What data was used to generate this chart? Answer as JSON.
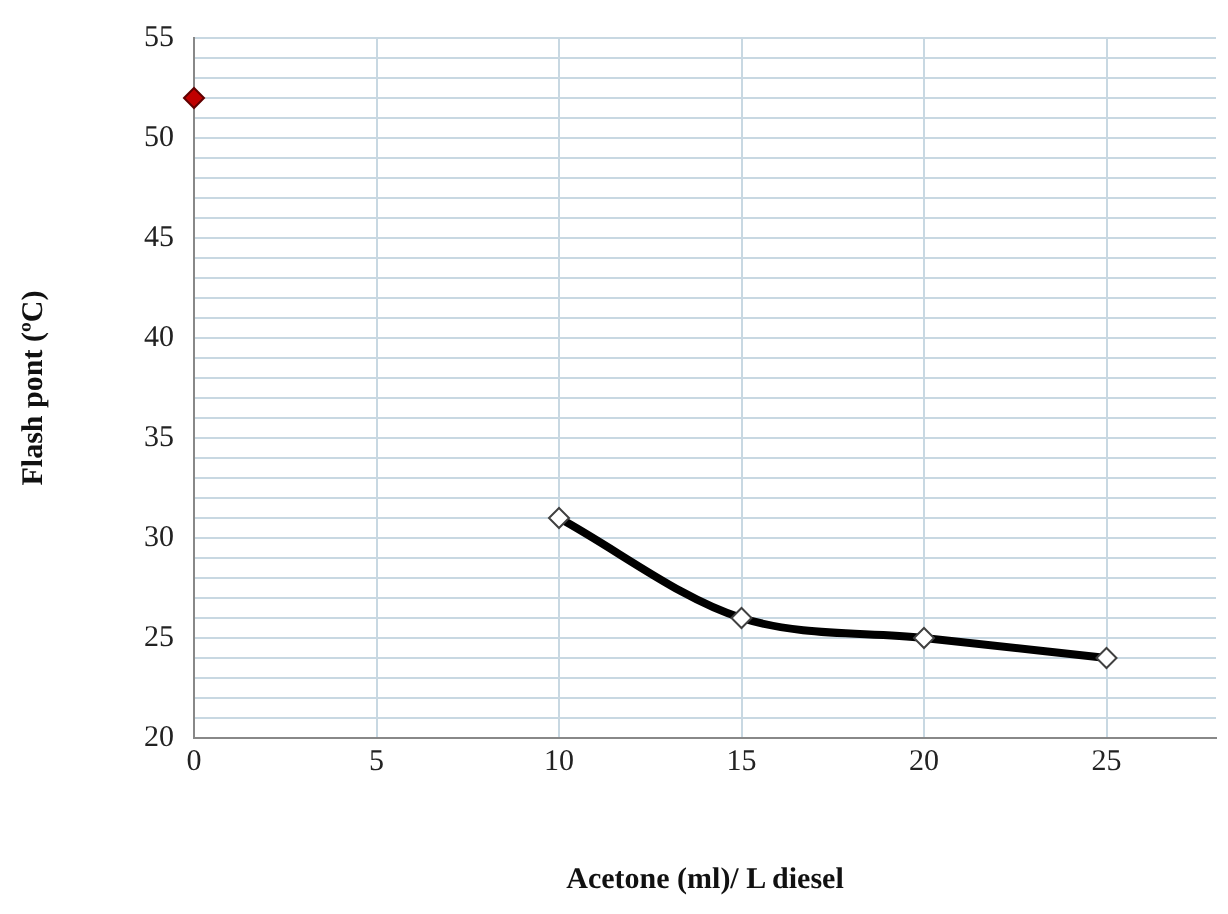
{
  "chart_data": {
    "type": "line",
    "xlabel": "Acetone (ml)/ L diesel",
    "ylabel": "Flash pont (ºC)",
    "series": [
      {
        "type": "scatter",
        "color": "#c00000",
        "x": [
          0
        ],
        "values": [
          52
        ]
      },
      {
        "color": "#000000",
        "x": [
          10,
          15,
          20,
          25
        ],
        "values": [
          31,
          26,
          25,
          24
        ]
      }
    ],
    "xlim": [
      0,
      28
    ],
    "xticks": [
      0,
      5,
      10,
      15,
      20,
      25
    ],
    "ylim": [
      20,
      55
    ],
    "yticks": [
      20,
      {
        "value": 21,
        "label": null
      },
      {
        "value": 22,
        "label": null
      },
      {
        "value": 23,
        "label": null
      },
      {
        "value": 24,
        "label": null
      },
      25,
      {
        "value": 26,
        "label": null
      },
      {
        "value": 27,
        "label": null
      },
      {
        "value": 28,
        "label": null
      },
      {
        "value": 29,
        "label": null
      },
      30,
      {
        "value": 31,
        "label": null
      },
      {
        "value": 32,
        "label": null
      },
      {
        "value": 33,
        "label": null
      },
      {
        "value": 34,
        "label": null
      },
      35,
      {
        "value": 36,
        "label": null
      },
      {
        "value": 37,
        "label": null
      },
      {
        "value": 38,
        "label": null
      },
      {
        "value": 39,
        "label": null
      },
      40,
      {
        "value": 41,
        "label": null
      },
      {
        "value": 42,
        "label": null
      },
      {
        "value": 43,
        "label": null
      },
      {
        "value": 44,
        "label": null
      },
      45,
      {
        "value": 46,
        "label": null
      },
      {
        "value": 47,
        "label": null
      },
      {
        "value": 48,
        "label": null
      },
      {
        "value": 49,
        "label": null
      },
      50,
      {
        "value": 51,
        "label": null
      },
      {
        "value": 52,
        "label": null
      },
      {
        "value": 53,
        "label": null
      },
      {
        "value": 54,
        "label": null
      },
      55
    ],
    "grid": true,
    "marker": "diamond",
    "legend": false
  }
}
